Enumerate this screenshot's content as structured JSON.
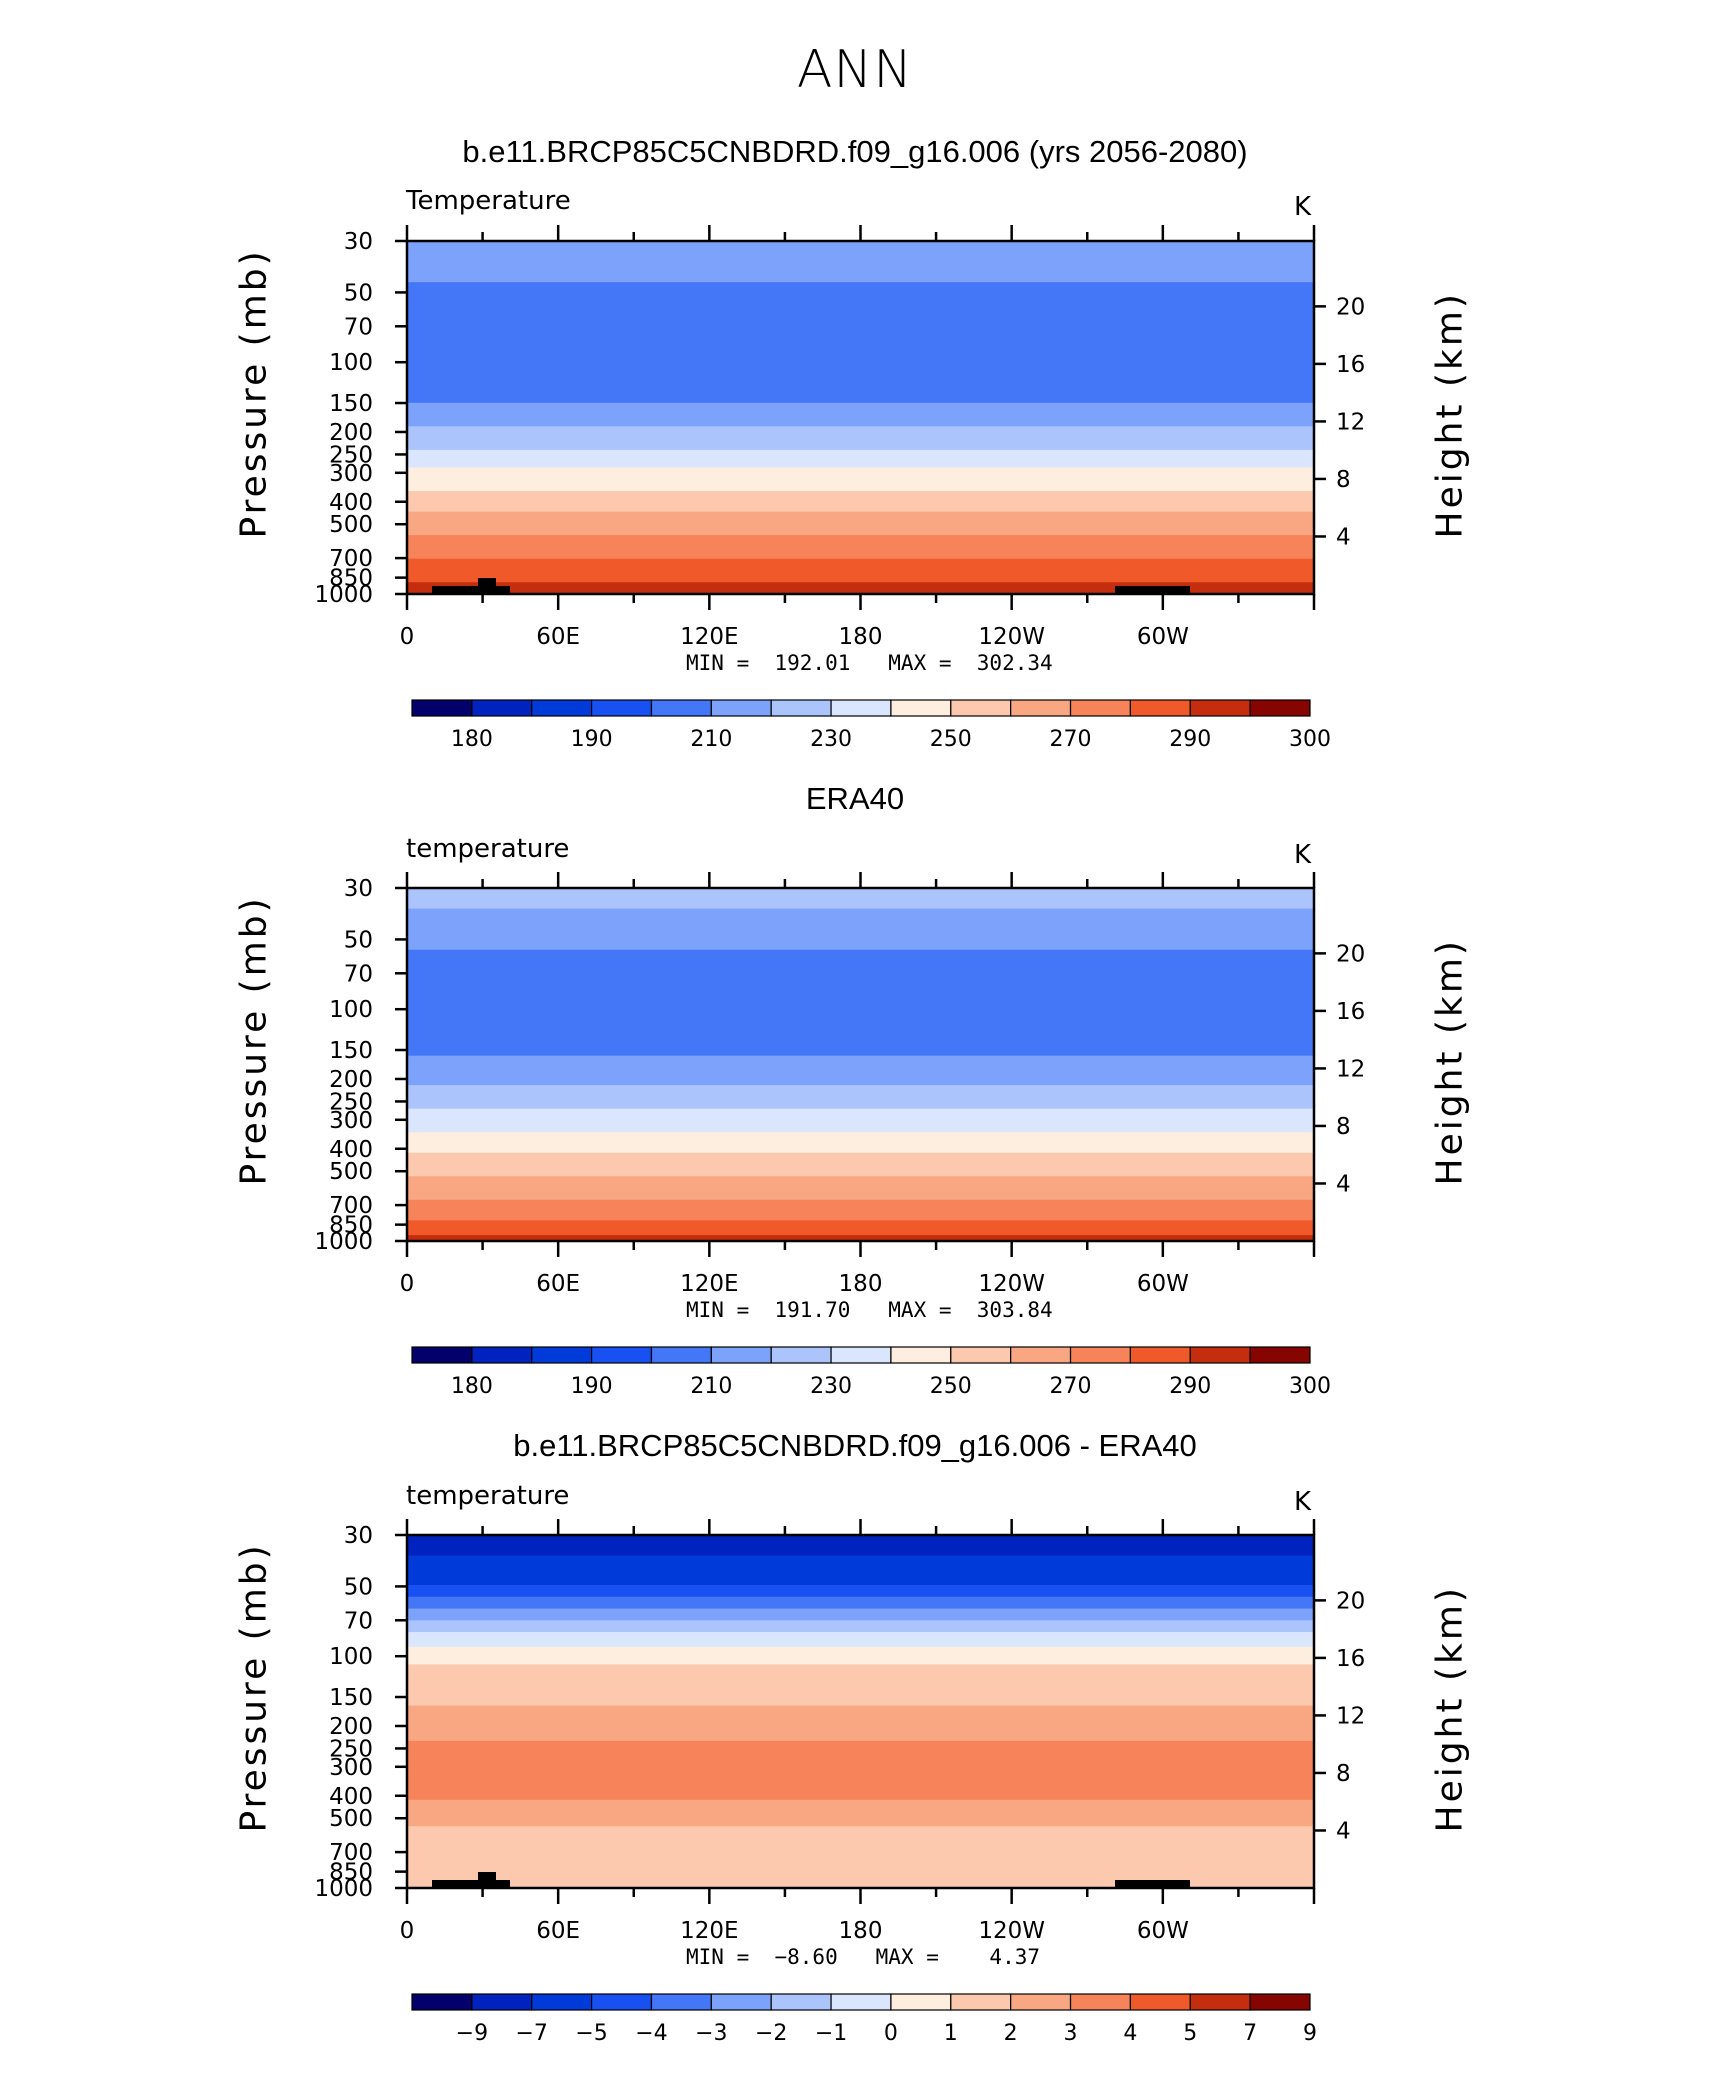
{
  "page_title": "ANN",
  "chart_data": [
    {
      "type": "contour",
      "title": "b.e11.BRCP85C5CNBDRD.f09_g16.006 (yrs 2056-2080)",
      "variable_label": "Temperature",
      "units": "K",
      "ylabel": "Pressure (mb)",
      "ylabel_right": "Height (km)",
      "x_ticks": [
        "0",
        "60E",
        "120E",
        "180",
        "120W",
        "60W"
      ],
      "y_ticks": [
        "30",
        "50",
        "70",
        "100",
        "150",
        "200",
        "250",
        "300",
        "400",
        "500",
        "700",
        "850",
        "1000"
      ],
      "y_ticks_right": [
        "20",
        "16",
        "12",
        "8",
        "4"
      ],
      "min": 192.01,
      "max": 302.34,
      "min_max_text": "MIN =  192.01   MAX =  302.34",
      "colorbar_labels": [
        "180",
        "190",
        "210",
        "230",
        "250",
        "270",
        "290",
        "300"
      ],
      "profile_pressure": [
        30,
        40,
        50,
        70,
        100,
        150,
        200,
        250,
        300,
        400,
        500,
        700,
        850,
        1000
      ],
      "profile_values": [
        215,
        213,
        208,
        203,
        204,
        210,
        222,
        232,
        243,
        255,
        265,
        280,
        288,
        295
      ]
    },
    {
      "type": "contour",
      "title": "ERA40",
      "variable_label": "temperature",
      "units": "K",
      "ylabel": "Pressure (mb)",
      "ylabel_right": "Height (km)",
      "x_ticks": [
        "0",
        "60E",
        "120E",
        "180",
        "120W",
        "60W"
      ],
      "y_ticks": [
        "30",
        "50",
        "70",
        "100",
        "150",
        "200",
        "250",
        "300",
        "400",
        "500",
        "700",
        "850",
        "1000"
      ],
      "y_ticks_right": [
        "20",
        "16",
        "12",
        "8",
        "4"
      ],
      "min": 191.7,
      "max": 303.84,
      "min_max_text": "MIN =  191.70   MAX =  303.84",
      "colorbar_labels": [
        "180",
        "190",
        "210",
        "230",
        "250",
        "270",
        "290",
        "300"
      ],
      "profile_pressure": [
        30,
        40,
        50,
        70,
        100,
        150,
        200,
        250,
        300,
        400,
        500,
        700,
        850,
        1000
      ],
      "profile_values": [
        224,
        218,
        212,
        206,
        204,
        208,
        217,
        226,
        235,
        248,
        258,
        272,
        283,
        293
      ]
    },
    {
      "type": "contour",
      "title": "b.e11.BRCP85C5CNBDRD.f09_g16.006 - ERA40",
      "variable_label": "temperature",
      "units": "K",
      "ylabel": "Pressure (mb)",
      "ylabel_right": "Height (km)",
      "x_ticks": [
        "0",
        "60E",
        "120E",
        "180",
        "120W",
        "60W"
      ],
      "y_ticks": [
        "30",
        "50",
        "70",
        "100",
        "150",
        "200",
        "250",
        "300",
        "400",
        "500",
        "700",
        "850",
        "1000"
      ],
      "y_ticks_right": [
        "20",
        "16",
        "12",
        "8",
        "4"
      ],
      "min": -8.6,
      "max": 4.37,
      "min_max_text": "MIN =  −8.60   MAX =    4.37",
      "colorbar_labels": [
        "−9",
        "−7",
        "−5",
        "−4",
        "−3",
        "−2",
        "−1",
        "0",
        "1",
        "2",
        "3",
        "4",
        "5",
        "7",
        "9"
      ],
      "profile_pressure": [
        30,
        40,
        50,
        70,
        100,
        150,
        200,
        250,
        300,
        400,
        500,
        700,
        850,
        1000
      ],
      "profile_values": [
        -8.3,
        -6.5,
        -4.8,
        -2.0,
        0.8,
        1.8,
        2.5,
        3.2,
        3.6,
        3.1,
        2.3,
        1.2,
        1.0,
        1.2
      ]
    }
  ],
  "colors": {
    "colorbar_palette": [
      "#03006b",
      "#0022bf",
      "#003ad9",
      "#1950f2",
      "#4477f7",
      "#7da2fb",
      "#abc4fb",
      "#dae6fd",
      "#fdeedf",
      "#fcc9ae",
      "#f9a682",
      "#f6835a",
      "#f05a2b",
      "#c42d0e",
      "#870500"
    ]
  }
}
